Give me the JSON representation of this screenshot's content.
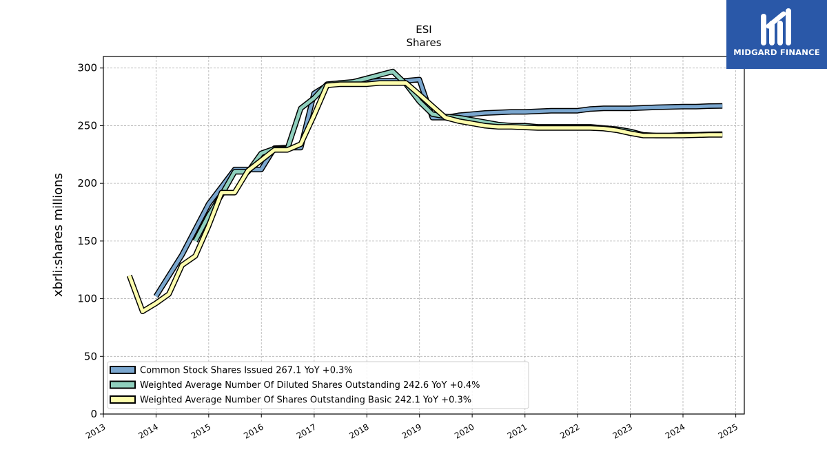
{
  "chart_data": {
    "type": "line",
    "title": "ESI",
    "subtitle": "Shares",
    "xlabel": "",
    "ylabel": "xbrli:shares millions",
    "xlim": [
      "2013-01-01",
      "2025-03-01"
    ],
    "ylim": [
      0,
      310
    ],
    "x_ticks": [
      "2013",
      "2014",
      "2015",
      "2016",
      "2017",
      "2018",
      "2019",
      "2020",
      "2021",
      "2022",
      "2023",
      "2024",
      "2025"
    ],
    "y_ticks": [
      0,
      50,
      100,
      150,
      200,
      250,
      300
    ],
    "grid": true,
    "legend_position": "lower-left",
    "series": [
      {
        "name": "Common Stock Shares Issued  267.1 YoY +0.3%",
        "color": "#7ba7cf",
        "points": [
          [
            "2013-12-31",
            102
          ],
          [
            "2014-06-30",
            138
          ],
          [
            "2014-12-31",
            182
          ],
          [
            "2015-06-30",
            212
          ],
          [
            "2015-12-31",
            212
          ],
          [
            "2016-03-31",
            230.5
          ],
          [
            "2016-06-30",
            231
          ],
          [
            "2016-09-30",
            231
          ],
          [
            "2016-12-31",
            278
          ],
          [
            "2017-03-31",
            285
          ],
          [
            "2017-06-30",
            287
          ],
          [
            "2017-09-30",
            287
          ],
          [
            "2017-12-31",
            288
          ],
          [
            "2018-03-31",
            289
          ],
          [
            "2018-06-30",
            289
          ],
          [
            "2018-09-30",
            289
          ],
          [
            "2018-12-31",
            290
          ],
          [
            "2019-03-31",
            257
          ],
          [
            "2019-06-30",
            257
          ],
          [
            "2019-09-30",
            259
          ],
          [
            "2019-12-31",
            260
          ],
          [
            "2020-03-31",
            261
          ],
          [
            "2020-06-30",
            261.5
          ],
          [
            "2020-09-30",
            262
          ],
          [
            "2020-12-31",
            262
          ],
          [
            "2021-06-30",
            263
          ],
          [
            "2021-12-31",
            263
          ],
          [
            "2022-03-31",
            264.5
          ],
          [
            "2022-06-30",
            265
          ],
          [
            "2022-12-31",
            265
          ],
          [
            "2023-06-30",
            266
          ],
          [
            "2023-12-31",
            266.5
          ],
          [
            "2024-03-31",
            266.5
          ],
          [
            "2024-06-30",
            267
          ],
          [
            "2024-09-30",
            267.1
          ]
        ]
      },
      {
        "name": "Weighted Average Number Of Diluted Shares Outstanding  242.6 YoY +0.4%",
        "color": "#8fcfbd",
        "points": [
          [
            "2014-09-30",
            150
          ],
          [
            "2014-12-31",
            172
          ],
          [
            "2015-03-31",
            190
          ],
          [
            "2015-06-30",
            210
          ],
          [
            "2015-09-30",
            210
          ],
          [
            "2015-12-31",
            226
          ],
          [
            "2016-03-31",
            230
          ],
          [
            "2016-06-30",
            230
          ],
          [
            "2016-09-30",
            265
          ],
          [
            "2016-12-31",
            274
          ],
          [
            "2017-03-31",
            286
          ],
          [
            "2017-06-30",
            287
          ],
          [
            "2017-09-30",
            288
          ],
          [
            "2017-12-31",
            291
          ],
          [
            "2018-03-31",
            294
          ],
          [
            "2018-06-30",
            297
          ],
          [
            "2018-09-30",
            286
          ],
          [
            "2018-12-31",
            271
          ],
          [
            "2019-03-31",
            260
          ],
          [
            "2019-06-30",
            258
          ],
          [
            "2019-09-30",
            257
          ],
          [
            "2019-12-31",
            255
          ],
          [
            "2020-03-31",
            253
          ],
          [
            "2020-06-30",
            251
          ],
          [
            "2020-09-30",
            250
          ],
          [
            "2020-12-31",
            250
          ],
          [
            "2021-03-31",
            249
          ],
          [
            "2021-06-30",
            249
          ],
          [
            "2021-09-30",
            249
          ],
          [
            "2021-12-31",
            249
          ],
          [
            "2022-03-31",
            249
          ],
          [
            "2022-06-30",
            248
          ],
          [
            "2022-09-30",
            247
          ],
          [
            "2022-12-31",
            245
          ],
          [
            "2023-03-31",
            242
          ],
          [
            "2023-06-30",
            241.5
          ],
          [
            "2023-09-30",
            241.5
          ],
          [
            "2023-12-31",
            242
          ],
          [
            "2024-03-31",
            242
          ],
          [
            "2024-06-30",
            242.5
          ],
          [
            "2024-09-30",
            242.6
          ]
        ]
      },
      {
        "name": "Weighted Average Number Of Shares Outstanding Basic  242.1 YoY +0.3%",
        "color": "#fdfdad",
        "points": [
          [
            "2013-06-30",
            120
          ],
          [
            "2013-09-30",
            89
          ],
          [
            "2013-12-31",
            96
          ],
          [
            "2014-03-31",
            104
          ],
          [
            "2014-06-30",
            129
          ],
          [
            "2014-09-30",
            137
          ],
          [
            "2014-12-31",
            163
          ],
          [
            "2015-03-31",
            192
          ],
          [
            "2015-06-30",
            192
          ],
          [
            "2015-09-30",
            211
          ],
          [
            "2015-12-31",
            220
          ],
          [
            "2016-03-31",
            229
          ],
          [
            "2016-06-30",
            229
          ],
          [
            "2016-09-30",
            234
          ],
          [
            "2016-12-31",
            259
          ],
          [
            "2017-03-31",
            285
          ],
          [
            "2017-06-30",
            286
          ],
          [
            "2017-09-30",
            286
          ],
          [
            "2017-12-31",
            286
          ],
          [
            "2018-03-31",
            287
          ],
          [
            "2018-06-30",
            287
          ],
          [
            "2018-09-30",
            287
          ],
          [
            "2018-12-31",
            277
          ],
          [
            "2019-03-31",
            267
          ],
          [
            "2019-06-30",
            257
          ],
          [
            "2019-09-30",
            254
          ],
          [
            "2019-12-31",
            252
          ],
          [
            "2020-03-31",
            250
          ],
          [
            "2020-06-30",
            249
          ],
          [
            "2020-09-30",
            249
          ],
          [
            "2020-12-31",
            248.5
          ],
          [
            "2021-03-31",
            248
          ],
          [
            "2021-06-30",
            248
          ],
          [
            "2021-09-30",
            248
          ],
          [
            "2021-12-31",
            248
          ],
          [
            "2022-03-31",
            248
          ],
          [
            "2022-06-30",
            247.5
          ],
          [
            "2022-09-30",
            246
          ],
          [
            "2022-12-31",
            243.5
          ],
          [
            "2023-03-31",
            241.5
          ],
          [
            "2023-06-30",
            241.5
          ],
          [
            "2023-09-30",
            241.5
          ],
          [
            "2023-12-31",
            241.5
          ],
          [
            "2024-03-31",
            241.8
          ],
          [
            "2024-06-30",
            242
          ],
          [
            "2024-09-30",
            242.1
          ]
        ]
      }
    ]
  },
  "logo": {
    "text": "MIDGARD FINANCE",
    "color": "#2a58a8"
  }
}
